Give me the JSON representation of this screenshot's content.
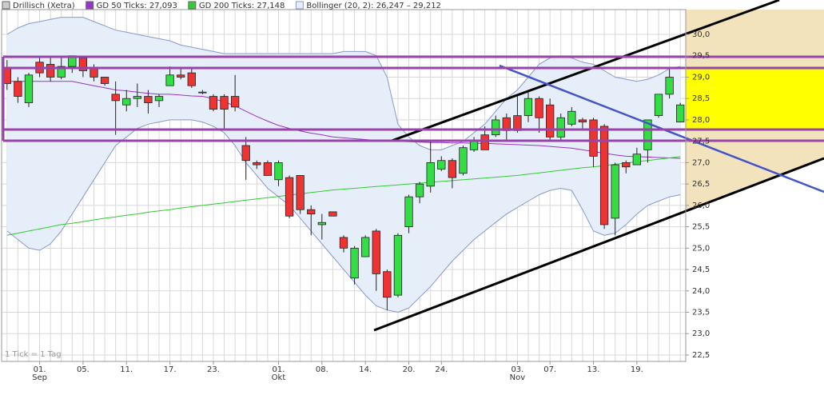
{
  "chart_data": {
    "type": "candlestick",
    "footnote": "1 Tick = 1 Tag",
    "categories": [
      null,
      null,
      null,
      "01.",
      null,
      null,
      null,
      "05.",
      null,
      null,
      null,
      "11.",
      null,
      null,
      null,
      "17.",
      null,
      null,
      null,
      "23.",
      null,
      null,
      null,
      null,
      null,
      "01.",
      null,
      null,
      null,
      "08.",
      null,
      null,
      null,
      "14.",
      null,
      null,
      null,
      "20.",
      null,
      null,
      "24.",
      null,
      null,
      null,
      null,
      null,
      null,
      "03.",
      null,
      null,
      "07.",
      null,
      null,
      null,
      "13.",
      null,
      null,
      null,
      "19.",
      null,
      null,
      null,
      null
    ],
    "sublabels": [
      null,
      null,
      null,
      "Sep",
      null,
      null,
      null,
      null,
      null,
      null,
      null,
      null,
      null,
      null,
      null,
      null,
      null,
      null,
      null,
      null,
      null,
      null,
      null,
      null,
      null,
      "Okt",
      null,
      null,
      null,
      null,
      null,
      null,
      null,
      null,
      null,
      null,
      null,
      null,
      null,
      null,
      null,
      null,
      null,
      null,
      null,
      null,
      null,
      "Nov",
      null,
      null,
      null,
      null,
      null,
      null,
      null,
      null,
      null,
      null,
      null,
      null,
      null,
      null,
      null
    ],
    "ylim": [
      22.35,
      30.58
    ],
    "yticks": [
      {
        "value": 22.5,
        "label": "22,5"
      },
      {
        "value": 23,
        "label": "23,0"
      },
      {
        "value": 23.5,
        "label": "23,5"
      },
      {
        "value": 24,
        "label": "24,0"
      },
      {
        "value": 24.5,
        "label": "24,5"
      },
      {
        "value": 25,
        "label": "25,0"
      },
      {
        "value": 25.5,
        "label": "25,5"
      },
      {
        "value": 26,
        "label": "26,0"
      },
      {
        "value": 26.5,
        "label": "26,5"
      },
      {
        "value": 27,
        "label": "27,0"
      },
      {
        "value": 27.5,
        "label": "27,5"
      },
      {
        "value": 28,
        "label": "28,0"
      },
      {
        "value": 28.5,
        "label": "28,5"
      },
      {
        "value": 29,
        "label": "29,0"
      },
      {
        "value": 29.5,
        "label": "29,5"
      },
      {
        "value": 30,
        "label": "30,0"
      }
    ],
    "grid": true,
    "candles": {
      "name": "Drillisch (Xetra)",
      "color": "#cccccc",
      "up_color": "#33dd44",
      "down_color": "#ee3333",
      "open": [
        29.2,
        28.9,
        28.4,
        29.35,
        29.3,
        29.0,
        29.25,
        29.45,
        29.2,
        29.0,
        28.6,
        28.35,
        28.5,
        28.55,
        28.45,
        28.8,
        29.05,
        29.1,
        28.65,
        28.55,
        28.55,
        28.55,
        27.4,
        27.0,
        27.0,
        26.6,
        26.65,
        26.7,
        25.9,
        25.55,
        25.85,
        25.25,
        24.3,
        24.8,
        25.4,
        24.45,
        23.9,
        25.5,
        26.2,
        26.45,
        26.85,
        27.05,
        26.75,
        27.3,
        27.65,
        27.65,
        28.05,
        28.1,
        28.1,
        28.5,
        28.35,
        27.6,
        27.9,
        28.0,
        28.0,
        27.85,
        25.7,
        27.0,
        26.95,
        27.3,
        28.1,
        28.6,
        27.95
      ],
      "high": [
        29.4,
        29.0,
        29.1,
        29.5,
        29.5,
        29.45,
        29.5,
        29.5,
        29.3,
        29.0,
        28.9,
        28.7,
        28.85,
        28.7,
        28.6,
        29.25,
        29.2,
        29.2,
        28.7,
        28.6,
        28.6,
        29.05,
        27.6,
        27.05,
        27.05,
        27.05,
        26.7,
        26.7,
        26.0,
        25.8,
        25.85,
        25.3,
        25.05,
        25.3,
        25.45,
        24.5,
        25.35,
        26.25,
        26.55,
        27.5,
        27.15,
        27.1,
        27.4,
        27.6,
        27.85,
        28.1,
        28.15,
        28.55,
        28.65,
        28.55,
        28.5,
        28.15,
        28.3,
        28.05,
        28.05,
        27.9,
        27.0,
        27.05,
        27.35,
        28.0,
        28.6,
        29.2,
        28.4
      ],
      "low": [
        28.7,
        28.4,
        28.3,
        29.0,
        28.9,
        28.95,
        29.1,
        29.0,
        28.9,
        28.8,
        27.65,
        28.2,
        28.3,
        28.15,
        28.3,
        28.8,
        28.95,
        28.75,
        28.6,
        28.2,
        27.8,
        28.2,
        26.6,
        26.85,
        26.7,
        26.45,
        25.7,
        25.8,
        25.3,
        25.2,
        25.75,
        24.9,
        24.15,
        24.8,
        24.0,
        23.55,
        23.85,
        25.35,
        26.05,
        26.3,
        26.8,
        26.4,
        26.7,
        27.25,
        27.3,
        27.6,
        27.5,
        27.7,
        27.95,
        27.7,
        27.5,
        27.5,
        27.85,
        27.8,
        26.9,
        25.45,
        25.3,
        26.75,
        27.0,
        27.0,
        28.05,
        28.5,
        27.95
      ],
      "close": [
        28.85,
        28.55,
        29.05,
        29.1,
        29.0,
        29.25,
        29.5,
        29.15,
        29.0,
        28.85,
        28.45,
        28.5,
        28.55,
        28.4,
        28.55,
        29.05,
        29.0,
        28.8,
        28.65,
        28.25,
        28.25,
        28.3,
        27.05,
        26.95,
        26.7,
        27.0,
        25.75,
        25.9,
        25.8,
        25.6,
        25.75,
        25.0,
        25.0,
        25.25,
        24.4,
        23.85,
        25.3,
        26.2,
        26.5,
        27.0,
        27.05,
        26.65,
        27.35,
        27.5,
        27.3,
        28.0,
        27.75,
        27.75,
        28.5,
        28.05,
        27.6,
        28.05,
        28.2,
        27.95,
        27.15,
        25.55,
        26.95,
        26.9,
        27.2,
        28.0,
        28.6,
        29.0,
        28.35
      ]
    },
    "bollinger": {
      "name": "Bollinger (20, 2): 26,247 – 29,212",
      "color": "#8899cc",
      "fill": "#e6eefa",
      "upper": [
        30.0,
        30.15,
        30.25,
        30.3,
        30.35,
        30.4,
        30.4,
        30.4,
        30.3,
        30.2,
        30.1,
        30.05,
        30.0,
        29.95,
        29.9,
        29.85,
        29.75,
        29.7,
        29.65,
        29.6,
        29.55,
        29.55,
        29.55,
        29.55,
        29.55,
        29.55,
        29.55,
        29.55,
        29.55,
        29.55,
        29.55,
        29.6,
        29.6,
        29.6,
        29.5,
        29.0,
        27.9,
        27.6,
        27.4,
        27.3,
        27.3,
        27.4,
        27.5,
        27.7,
        27.9,
        28.2,
        28.5,
        28.7,
        29.0,
        29.3,
        29.45,
        29.5,
        29.45,
        29.35,
        29.3,
        29.15,
        29.0,
        28.95,
        28.9,
        28.95,
        29.05,
        29.2,
        29.25
      ],
      "lower": [
        25.4,
        25.2,
        25.0,
        24.95,
        25.1,
        25.4,
        25.8,
        26.2,
        26.6,
        27.0,
        27.4,
        27.6,
        27.8,
        27.9,
        27.95,
        28.0,
        28.0,
        28.0,
        27.95,
        27.85,
        27.7,
        27.4,
        27.0,
        26.7,
        26.4,
        26.2,
        26.0,
        25.7,
        25.4,
        25.1,
        24.8,
        24.5,
        24.2,
        23.9,
        23.65,
        23.55,
        23.5,
        23.6,
        23.85,
        24.1,
        24.4,
        24.7,
        24.95,
        25.2,
        25.4,
        25.6,
        25.8,
        25.95,
        26.1,
        26.25,
        26.35,
        26.4,
        26.35,
        25.9,
        25.4,
        25.3,
        25.35,
        25.55,
        25.8,
        26.0,
        26.1,
        26.2,
        26.25
      ]
    },
    "series": [
      {
        "name": "GD 50 Ticks: 27,093",
        "color": "#9933cc",
        "values": [
          28.9,
          28.9,
          28.9,
          28.9,
          28.9,
          28.9,
          28.9,
          28.85,
          28.8,
          28.75,
          28.7,
          28.68,
          28.65,
          28.62,
          28.6,
          28.6,
          28.58,
          28.56,
          28.55,
          28.5,
          28.42,
          28.33,
          28.2,
          28.08,
          27.97,
          27.87,
          27.8,
          27.74,
          27.69,
          27.65,
          27.6,
          27.58,
          27.56,
          27.54,
          27.52,
          27.5,
          27.5,
          27.49,
          27.48,
          27.47,
          27.47,
          27.46,
          27.46,
          27.45,
          27.45,
          27.44,
          27.43,
          27.42,
          27.41,
          27.4,
          27.38,
          27.36,
          27.34,
          27.3,
          27.26,
          27.22,
          27.18,
          27.15,
          27.14,
          27.13,
          27.12,
          27.11,
          27.1
        ]
      },
      {
        "name": "GD 200 Ticks: 27,148",
        "color": "#33cc33",
        "values": [
          25.3,
          25.35,
          25.4,
          25.45,
          25.5,
          25.55,
          25.58,
          25.62,
          25.66,
          25.7,
          25.73,
          25.77,
          25.8,
          25.84,
          25.87,
          25.9,
          25.94,
          25.97,
          26.0,
          26.03,
          26.06,
          26.09,
          26.12,
          26.15,
          26.18,
          26.21,
          26.24,
          26.27,
          26.3,
          26.33,
          26.36,
          26.38,
          26.4,
          26.42,
          26.44,
          26.46,
          26.48,
          26.5,
          26.52,
          26.54,
          26.56,
          26.58,
          26.6,
          26.62,
          26.64,
          26.66,
          26.68,
          26.7,
          26.73,
          26.76,
          26.79,
          26.82,
          26.85,
          26.88,
          26.9,
          26.93,
          26.96,
          26.99,
          27.02,
          27.05,
          27.08,
          27.11,
          27.14
        ]
      }
    ]
  }
}
